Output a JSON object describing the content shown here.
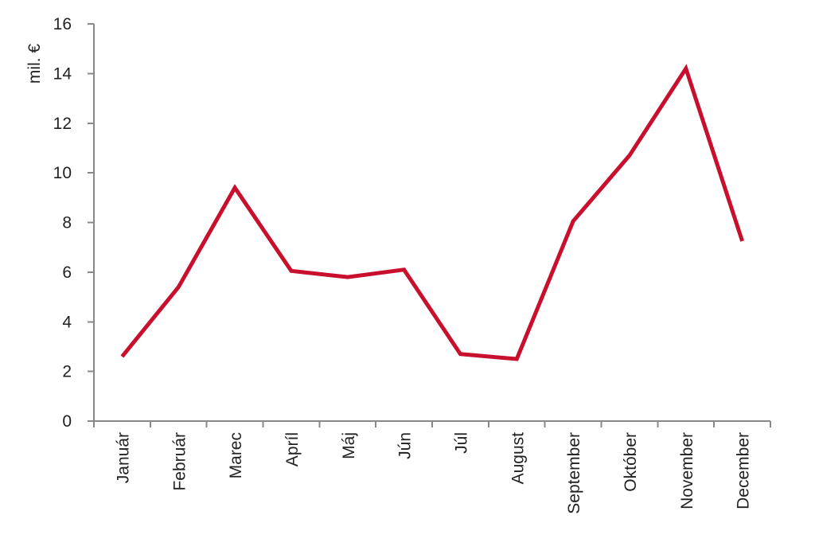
{
  "chart_data": {
    "type": "line",
    "title": "",
    "xlabel": "",
    "ylabel": "mil. €",
    "categories": [
      "Január",
      "Február",
      "Marec",
      "Apríl",
      "Máj",
      "Jún",
      "Júl",
      "August",
      "September",
      "Október",
      "November",
      "December"
    ],
    "series": [
      {
        "color": "#c8102e",
        "values": [
          2.6,
          5.4,
          9.4,
          6.05,
          5.8,
          6.1,
          2.7,
          2.5,
          8.05,
          10.7,
          14.2,
          7.25
        ]
      }
    ],
    "ylim": [
      0,
      16
    ],
    "yticks": [
      0,
      2,
      4,
      6,
      8,
      10,
      12,
      14,
      16
    ],
    "grid": false,
    "legend": "none"
  }
}
